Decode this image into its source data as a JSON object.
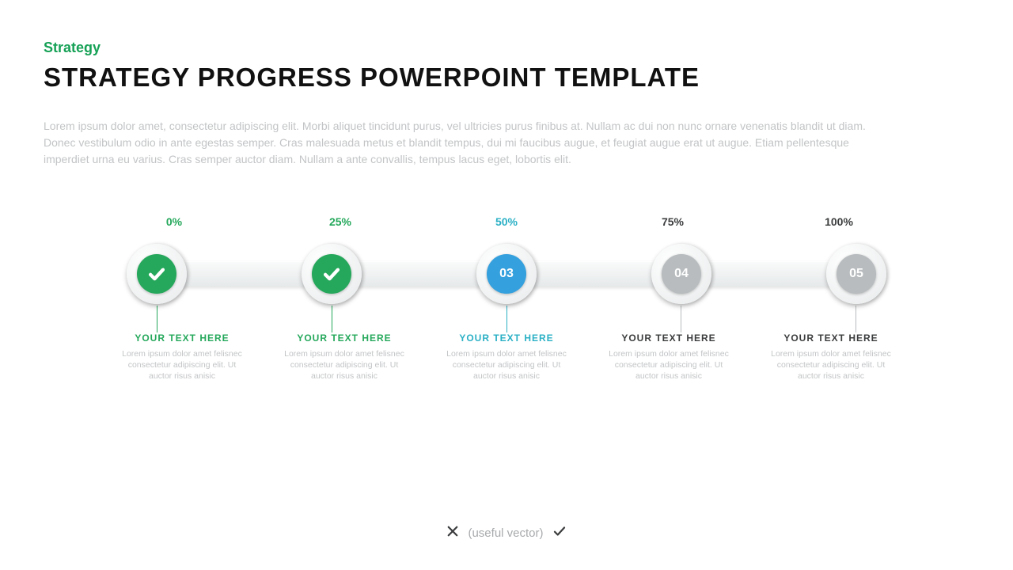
{
  "eyebrow": "Strategy",
  "title": "STRATEGY PROGRESS POWERPOINT TEMPLATE",
  "intro": "Lorem ipsum dolor amet, consectetur adipiscing elit. Morbi aliquet tincidunt purus, vel ultricies purus finibus at. Nullam ac dui non nunc ornare venenatis blandit ut diam. Donec vestibulum odio in ante egestas semper. Cras malesuada metus et blandit tempus, dui mi faucibus augue, et feugiat augue erat ut augue. Etiam pellentesque imperdiet urna eu varius. Cras semper auctor diam. Nullam a ante convallis, tempus lacus eget, lobortis elit.",
  "colors": {
    "green": "#25a85b",
    "teal": "#2ab0c5",
    "blue": "#34a0dd",
    "gray": "#b8bcbe",
    "dark": "#3b3c3d",
    "bodyGray": "#c2c4c6",
    "railTop": "#fafbfb",
    "railBottom": "#e6e9ea"
  },
  "timeline": {
    "steps": [
      {
        "percent": "0%",
        "percentColor": "#25a85b",
        "type": "check",
        "fill": "#25a85b",
        "connectorColor": "#25a85b",
        "labelTitle": "YOUR TEXT HERE",
        "labelColor": "#25a85b"
      },
      {
        "percent": "25%",
        "percentColor": "#25a85b",
        "type": "check",
        "fill": "#25a85b",
        "connectorColor": "#25a85b",
        "labelTitle": "YOUR TEXT HERE",
        "labelColor": "#25a85b"
      },
      {
        "percent": "50%",
        "percentColor": "#2ab0c5",
        "type": "number",
        "value": "03",
        "fill": "#34a0dd",
        "connectorColor": "#2ab0c5",
        "labelTitle": "YOUR TEXT HERE",
        "labelColor": "#2ab0c5"
      },
      {
        "percent": "75%",
        "percentColor": "#3b3c3d",
        "type": "number",
        "value": "04",
        "fill": "#b8bcbe",
        "connectorColor": "#b8bcbe",
        "labelTitle": "YOUR TEXT HERE",
        "labelColor": "#3b3c3d"
      },
      {
        "percent": "100%",
        "percentColor": "#3b3c3d",
        "type": "number",
        "value": "05",
        "fill": "#b8bcbe",
        "connectorColor": "#b8bcbe",
        "labelTitle": "YOUR TEXT HERE",
        "labelColor": "#3b3c3d"
      }
    ],
    "labelBody": "Lorem ipsum dolor amet felisnec consectetur adipiscing elit. Ut auctor risus anisic"
  },
  "footer": {
    "text": "(useful vector)"
  }
}
